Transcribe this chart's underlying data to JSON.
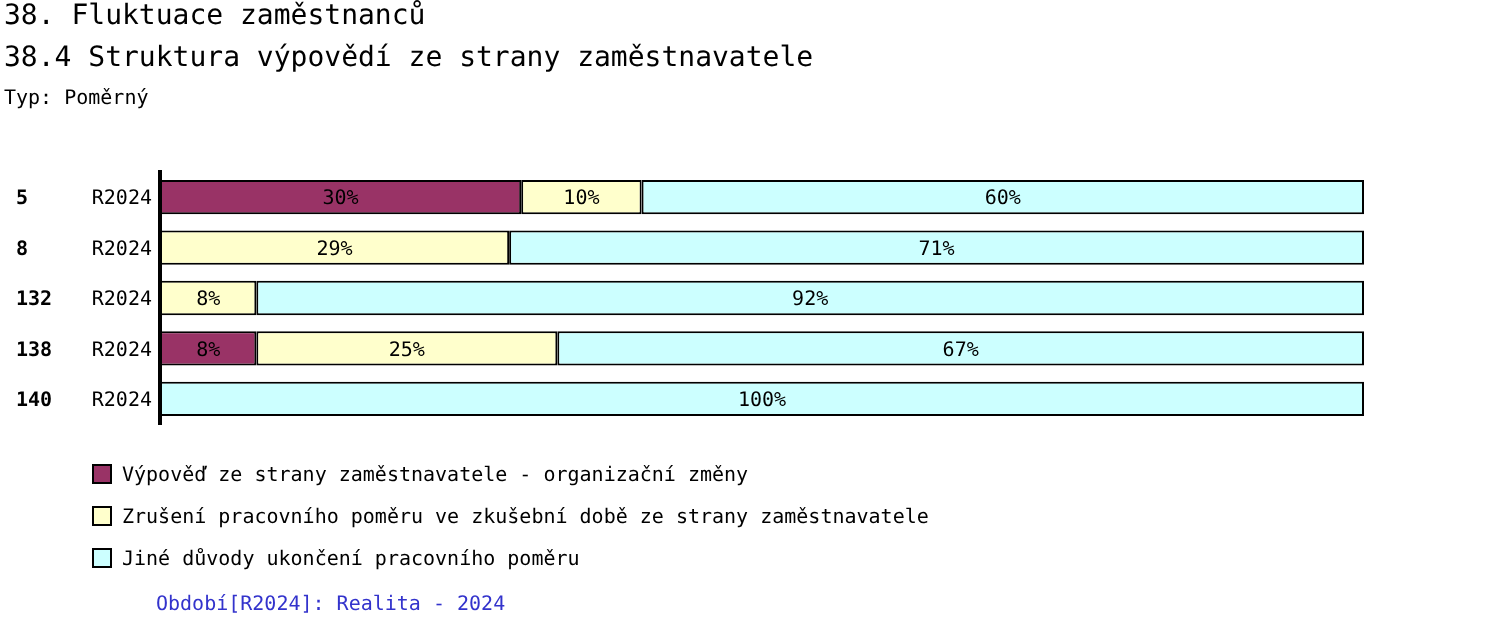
{
  "chart_data": {
    "type": "bar",
    "orientation": "horizontal",
    "stacked": true,
    "title": "38. Fluktuace zaměstnanců",
    "subtitle": "38.4 Struktura výpovědí ze strany zaměstnavatele",
    "categories": [
      "5",
      "8",
      "132",
      "138",
      "140"
    ],
    "y2_categories": [
      "R2024",
      "R2024",
      "R2024",
      "R2024",
      "R2024"
    ],
    "xlim": [
      0,
      100
    ],
    "legend": "bottom left",
    "grid": false,
    "series": [
      {
        "name": "Výpověď ze strany zaměstnavatele - organizační změny",
        "color": "#993366",
        "values": [
          30,
          null,
          null,
          8,
          null
        ],
        "value_labels": [
          "30%",
          null,
          null,
          "8%",
          null
        ]
      },
      {
        "name": "Zrušení pracovního poměru ve zkušební době ze strany zaměstnavatele",
        "color": "#ffffcc",
        "values": [
          10,
          29,
          8,
          25,
          null
        ],
        "value_labels": [
          "10%",
          "29%",
          "8%",
          "25%",
          null
        ]
      },
      {
        "name": "Jiné důvody ukončení pracovního poměru",
        "color": "#ccffff",
        "values": [
          60,
          71,
          92,
          67,
          100
        ],
        "value_labels": [
          "60%",
          "71%",
          "92%",
          "67%",
          "100%"
        ]
      }
    ],
    "annotations": [
      "Typ: Poměrný",
      "Období[R2024]: Realita - 2024"
    ]
  }
}
